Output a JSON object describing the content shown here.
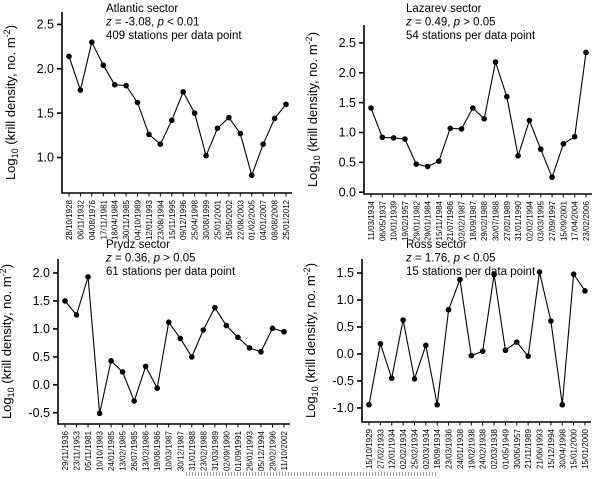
{
  "figure": {
    "background": "#ffffff",
    "ink_color": "#000000",
    "ylabel": {
      "prefix": "Log",
      "sub": "10",
      "mid": " (krill density, no. m",
      "sup": "-2",
      "suffix": ")"
    }
  },
  "chart_data": [
    {
      "type": "line",
      "id": "atlantic",
      "title": "Atlantic sector",
      "stats": {
        "z_sym": "z",
        "z_rest": " = -3.08, ",
        "p_sym": "p",
        "p_rest": " < 0.01"
      },
      "stations_label": "409 stations per data point",
      "ylabel": "Log10 (krill density, no. m-2)",
      "xlabel": "",
      "grid": false,
      "categories": [
        "28/10/1928",
        "06/11/1932",
        "04/08/1976",
        "17/11/1981",
        "18/04/1984",
        "30/11/1985",
        "04/10/1989",
        "12/01/1993",
        "23/08/1994",
        "15/11/1995",
        "09/12/1996",
        "25/04/1998",
        "30/08/1999",
        "25/01/2001",
        "16/05/2002",
        "22/08/2003",
        "01/02/2005",
        "04/01/2007",
        "08/08/2008",
        "25/01/2012"
      ],
      "values": [
        2.14,
        1.76,
        2.3,
        2.04,
        1.82,
        1.81,
        1.62,
        1.26,
        1.15,
        1.42,
        1.74,
        1.5,
        1.02,
        1.33,
        1.45,
        1.27,
        0.8,
        1.15,
        1.44,
        1.6
      ],
      "yticks": [
        "1.0",
        "1.5",
        "2.0",
        "2.5"
      ],
      "ylim": [
        0.6,
        2.64
      ]
    },
    {
      "type": "line",
      "id": "lazarev",
      "title": "Lazarev sector",
      "stats": {
        "z_sym": "z",
        "z_rest": " = 0.49, ",
        "p_sym": "p",
        "p_rest": " > 0.05"
      },
      "stations_label": "54 stations per data point",
      "ylabel": "Log10 (krill density, no. m-2)",
      "xlabel": "",
      "grid": false,
      "categories": [
        "11/03/1934",
        "06/05/1937",
        "10/01/1939",
        "19/02/1957",
        "29/01/1982",
        "29/01/1984",
        "15/11/1984",
        "21/07/1986",
        "02/02/1987",
        "18/09/1987",
        "29/02/1988",
        "30/07/1988",
        "27/02/1989",
        "31/01/1990",
        "02/02/1994",
        "03/03/1995",
        "27/09/1997",
        "15/09/2001",
        "17/04/2004",
        "23/02/2006"
      ],
      "values": [
        1.41,
        0.92,
        0.91,
        0.89,
        0.47,
        0.43,
        0.52,
        1.07,
        1.06,
        1.41,
        1.23,
        2.18,
        1.6,
        0.61,
        1.2,
        0.72,
        0.25,
        0.81,
        0.93,
        2.34
      ],
      "yticks": [
        "0.0",
        "0.5",
        "1.0",
        "1.5",
        "2.0",
        "2.5"
      ],
      "ylim": [
        -0.03,
        2.8
      ]
    },
    {
      "type": "line",
      "id": "prydz",
      "title": "Prydz sector",
      "stats": {
        "z_sym": "z",
        "z_rest": " = 0.36, ",
        "p_sym": "p",
        "p_rest": " > 0.05"
      },
      "stations_label": "61 stations per data point",
      "ylabel": "Log10 (krill density, no. m-2)",
      "xlabel": "",
      "grid": false,
      "categories": [
        "29/11/1936",
        "23/11/1953",
        "05/11/1981",
        "10/10/1983",
        "24/01/1985",
        "13/02/1985",
        "26/07/1985",
        "13/02/1986",
        "19/08/1986",
        "10/03/1987",
        "30/12/1987",
        "31/01/1988",
        "23/02/1988",
        "31/03/1989",
        "02/09/1990",
        "01/09/1991",
        "26/01/1993",
        "05/12/1994",
        "29/02/1996",
        "11/10/2002"
      ],
      "values": [
        1.5,
        1.25,
        1.93,
        -0.51,
        0.43,
        0.23,
        -0.29,
        0.33,
        -0.06,
        1.12,
        0.83,
        0.5,
        0.98,
        1.38,
        1.06,
        0.85,
        0.66,
        0.59,
        1.01,
        0.95
      ],
      "yticks": [
        "-0.5",
        "0.0",
        "0.5",
        "1.0",
        "1.5",
        "2.0"
      ],
      "ylim": [
        -0.7,
        2.25
      ]
    },
    {
      "type": "line",
      "id": "ross",
      "title": "Ross sector",
      "stats": {
        "z_sym": "z",
        "z_rest": " = 1.76, ",
        "p_sym": "p",
        "p_rest": " < 0.05"
      },
      "stations_label": "15 stations per data point",
      "ylabel": "Log10 (krill density, no. m-2)",
      "xlabel": "",
      "grid": false,
      "categories": [
        "15/10/1929",
        "27/02/1933",
        "12/01/1934",
        "02/02/1934",
        "25/02/1934",
        "02/03/1934",
        "18/09/1934",
        "23/03/1936",
        "24/01/1938",
        "19/02/1938",
        "24/02/1938",
        "02/03/1938",
        "01/05/1949",
        "30/06/1957",
        "21/11/1989",
        "21/06/1993",
        "15/12/1994",
        "30/04/1998",
        "15/01/2000",
        "15/01/2000"
      ],
      "values": [
        -0.94,
        0.19,
        -0.45,
        0.63,
        -0.46,
        0.16,
        -0.94,
        0.82,
        1.38,
        -0.03,
        0.05,
        1.47,
        0.07,
        0.22,
        -0.04,
        1.52,
        0.61,
        -0.94,
        1.48,
        1.17
      ],
      "yticks": [
        "-1.0",
        "-0.5",
        "0.0",
        "0.5",
        "1.0",
        "1.5"
      ],
      "ylim": [
        -1.26,
        1.76
      ]
    }
  ]
}
